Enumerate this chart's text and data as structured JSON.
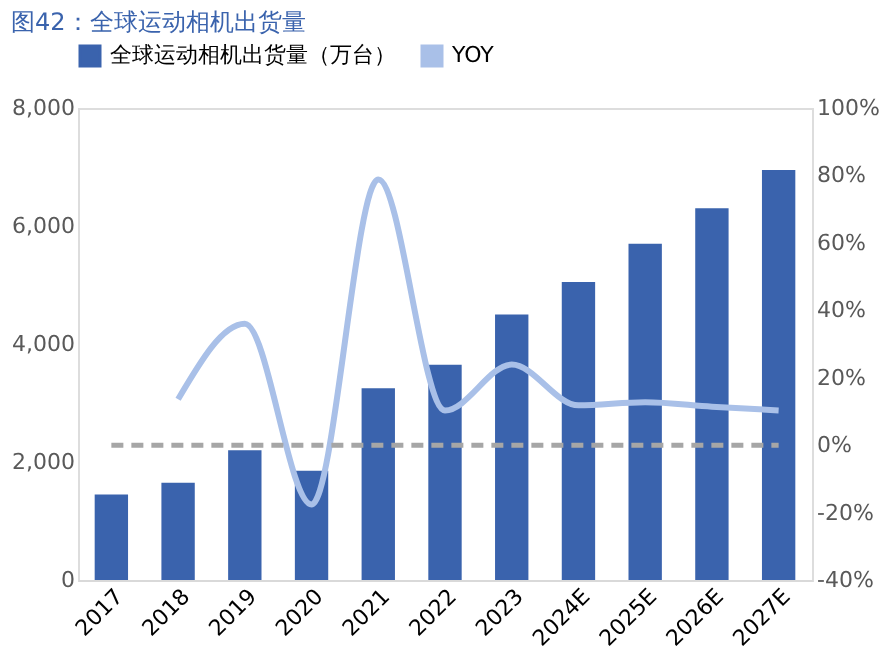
{
  "chart_data": {
    "type": "bar",
    "title": "图42：全球运动相机出货量",
    "categories": [
      "2017",
      "2018",
      "2019",
      "2020",
      "2021",
      "2022",
      "2023",
      "2024E",
      "2025E",
      "2026E",
      "2027E"
    ],
    "series": [
      {
        "name": "全球运动相机出货量（万台）",
        "color": "#3a63ad",
        "values": [
          1450,
          1650,
          2200,
          1850,
          3250,
          3650,
          4500,
          5050,
          5700,
          6300,
          6950
        ]
      },
      {
        "name": "YOY",
        "type": "line",
        "axis": "y2",
        "color": "#a9c0e8",
        "values": [
          null,
          13.6,
          36,
          -17.6,
          78.8,
          10.3,
          23.9,
          11.8,
          12.7,
          11.4,
          10.3
        ]
      }
    ],
    "ylim": [
      0,
      8000
    ],
    "yticks": [
      0,
      {
        "value": 2000,
        "label": "2,000"
      },
      {
        "value": 4000,
        "label": "4,000"
      },
      {
        "value": 6000,
        "label": "6,000"
      },
      {
        "value": 8000,
        "label": "8,000"
      }
    ],
    "y2lim": [
      -40,
      100
    ],
    "y2ticks": [
      {
        "value": -40,
        "label": "-40%"
      },
      {
        "value": -20,
        "label": "-20%"
      },
      {
        "value": 0,
        "label": "0%"
      },
      {
        "value": 20,
        "label": "20%"
      },
      {
        "value": 40,
        "label": "40%"
      },
      {
        "value": 60,
        "label": "60%"
      },
      {
        "value": 80,
        "label": "80%"
      },
      {
        "value": 100,
        "label": "100%"
      }
    ],
    "ref_lines": [
      {
        "axis": "y2",
        "value": 0,
        "color": "#a6a6a6",
        "line_style": "dashed"
      }
    ],
    "grid": false,
    "legend": "top",
    "line_style": "solid",
    "marker": "none"
  }
}
